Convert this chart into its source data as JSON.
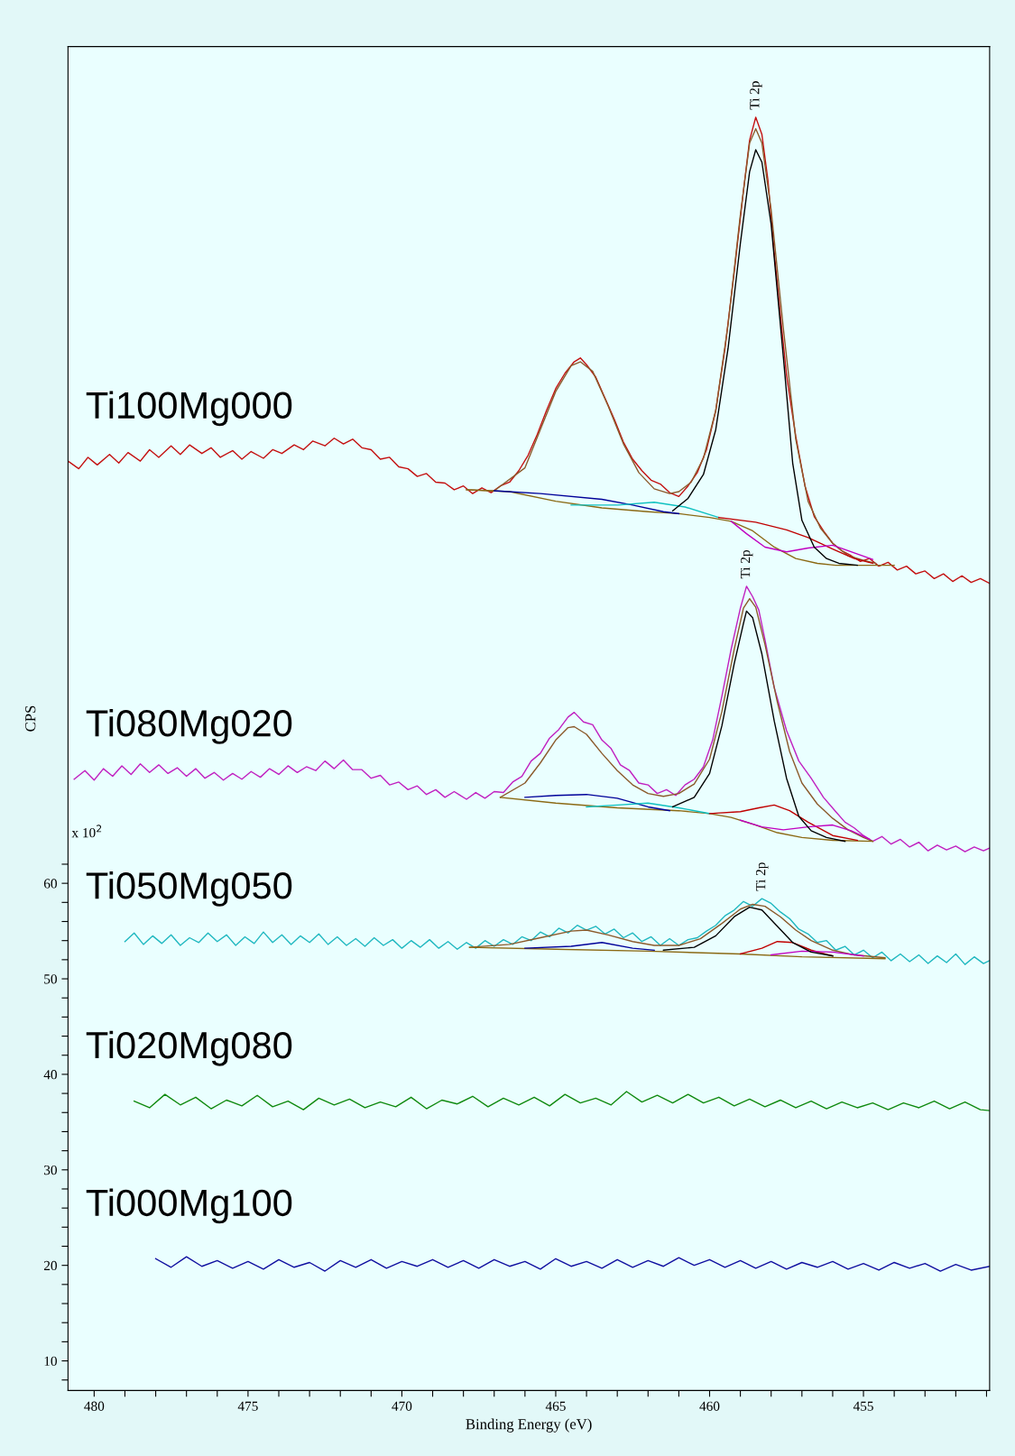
{
  "chart_data": {
    "type": "line",
    "xlabel": "Binding Energy (eV)",
    "ylabel": "CPS",
    "xlim": [
      480.85,
      450.9
    ],
    "ylim": [
      6.9,
      147.6
    ],
    "xticks": [
      480,
      {
        "value": 479,
        "label": null
      },
      {
        "value": 478,
        "label": null
      },
      {
        "value": 477,
        "label": null
      },
      {
        "value": 476,
        "label": null
      },
      475,
      {
        "value": 474,
        "label": null
      },
      {
        "value": 473,
        "label": null
      },
      {
        "value": 472,
        "label": null
      },
      {
        "value": 471,
        "label": null
      },
      470,
      {
        "value": 469,
        "label": null
      },
      {
        "value": 468,
        "label": null
      },
      {
        "value": 467,
        "label": null
      },
      {
        "value": 466,
        "label": null
      },
      465,
      {
        "value": 464,
        "label": null
      },
      {
        "value": 463,
        "label": null
      },
      {
        "value": 462,
        "label": null
      },
      {
        "value": 461,
        "label": null
      },
      460,
      {
        "value": 459,
        "label": null
      },
      {
        "value": 458,
        "label": null
      },
      {
        "value": 457,
        "label": null
      },
      {
        "value": 456,
        "label": null
      },
      455,
      {
        "value": 454,
        "label": null
      },
      {
        "value": 453,
        "label": null
      },
      {
        "value": 452,
        "label": null
      },
      {
        "value": 451,
        "label": null
      }
    ],
    "yticks": [
      {
        "value": 8,
        "label": null
      },
      10,
      {
        "value": 12,
        "label": null
      },
      {
        "value": 14,
        "label": null
      },
      {
        "value": 16,
        "label": null
      },
      {
        "value": 18,
        "label": null
      },
      20,
      {
        "value": 22,
        "label": null
      },
      {
        "value": 24,
        "label": null
      },
      {
        "value": 26,
        "label": null
      },
      {
        "value": 28,
        "label": null
      },
      30,
      {
        "value": 32,
        "label": null
      },
      {
        "value": 34,
        "label": null
      },
      {
        "value": 36,
        "label": null
      },
      {
        "value": 38,
        "label": null
      },
      40,
      {
        "value": 42,
        "label": null
      },
      {
        "value": 44,
        "label": null
      },
      {
        "value": 46,
        "label": null
      },
      {
        "value": 48,
        "label": null
      },
      50,
      {
        "value": 52,
        "label": null
      },
      {
        "value": 54,
        "label": null
      },
      {
        "value": 56,
        "label": null
      },
      {
        "value": 58,
        "label": null
      },
      60,
      {
        "value": 62,
        "label": null
      }
    ],
    "annotations": [
      "x 10$^{2}$",
      {
        "text": "Ti 2p",
        "x": 458.5,
        "y": 140.2
      },
      {
        "text": "Ti 2p",
        "x": 458.8,
        "y": 91.1
      },
      {
        "text": "Ti 2p",
        "x": 458.3,
        "y": 58.4
      }
    ],
    "series": [
      {
        "name": "Ti100Mg000",
        "color": "#c41010",
        "x": [
          480.85,
          480.5,
          480.2,
          479.9,
          479.5,
          479.2,
          478.9,
          478.5,
          478.2,
          477.9,
          477.5,
          477.2,
          476.9,
          476.5,
          476.2,
          475.9,
          475.5,
          475.2,
          474.9,
          474.5,
          474.2,
          473.9,
          473.5,
          473.2,
          472.9,
          472.5,
          472.2,
          471.9,
          471.6,
          471.3,
          471.0,
          470.7,
          470.4,
          470.1,
          469.8,
          469.5,
          469.2,
          468.9,
          468.6,
          468.3,
          468.0,
          467.7,
          467.4,
          467.1,
          466.8,
          466.5,
          466.2,
          465.9,
          465.6,
          465.3,
          465.0,
          464.7,
          464.4,
          464.2,
          464.0,
          463.7,
          463.4,
          463.1,
          462.8,
          462.5,
          462.2,
          461.9,
          461.6,
          461.3,
          461.0,
          460.7,
          460.4,
          460.1,
          459.8,
          459.5,
          459.2,
          458.9,
          458.7,
          458.5,
          458.3,
          458.1,
          457.9,
          457.7,
          457.5,
          457.2,
          456.9,
          456.6,
          456.3,
          456.0,
          455.7,
          455.4,
          455.1,
          454.8,
          454.5,
          454.2,
          453.9,
          453.6,
          453.3,
          453.0,
          452.7,
          452.4,
          452.1,
          451.8,
          451.5,
          451.2,
          450.9
        ],
        "values": [
          104.2,
          103.4,
          104.6,
          103.8,
          104.9,
          104.0,
          105.1,
          104.2,
          105.4,
          104.6,
          105.8,
          104.9,
          105.9,
          105.0,
          105.6,
          104.6,
          105.3,
          104.4,
          105.2,
          104.5,
          105.4,
          105.0,
          105.9,
          105.4,
          106.3,
          105.8,
          106.6,
          106.0,
          106.5,
          105.6,
          105.4,
          104.4,
          104.6,
          103.6,
          103.4,
          102.6,
          102.9,
          102.0,
          101.9,
          101.2,
          101.6,
          100.8,
          101.4,
          100.9,
          101.6,
          102.0,
          103.2,
          104.8,
          107.0,
          109.5,
          111.8,
          113.4,
          114.6,
          115.0,
          114.3,
          113.0,
          110.8,
          108.6,
          106.2,
          104.4,
          103.2,
          102.2,
          101.8,
          100.9,
          100.5,
          101.6,
          103.0,
          105.4,
          109.5,
          116.0,
          124.0,
          132.5,
          137.8,
          140.2,
          138.4,
          133.5,
          126.0,
          119.5,
          113.2,
          106.8,
          101.6,
          98.4,
          96.9,
          95.6,
          94.8,
          94.3,
          93.7,
          94.0,
          93.2,
          93.6,
          92.8,
          93.2,
          92.4,
          92.7,
          91.9,
          92.4,
          91.6,
          92.2,
          91.5,
          91.9,
          91.4
        ]
      },
      {
        "color": "#8b5a2b",
        "x": [
          467.9,
          467.0,
          466.0,
          465.5,
          465.0,
          464.5,
          464.2,
          463.8,
          463.3,
          462.8,
          462.3,
          461.8,
          461.3,
          461.0,
          460.6,
          460.2,
          459.8,
          459.4,
          459.0,
          458.7,
          458.5,
          458.3,
          458.0,
          457.6,
          457.2,
          456.8,
          456.4,
          456.0,
          455.5,
          455.0,
          454.6
        ],
        "values": [
          101.2,
          101.1,
          103.5,
          107.5,
          111.5,
          114.2,
          114.6,
          113.6,
          110.0,
          106.0,
          103.0,
          101.3,
          100.8,
          101.0,
          102.0,
          104.5,
          109.5,
          118.5,
          130.0,
          137.5,
          139.0,
          137.5,
          130.5,
          118.0,
          106.5,
          100.0,
          97.2,
          95.6,
          94.3,
          93.8,
          93.5
        ]
      },
      {
        "color": "#8b6914",
        "x": [
          467.9,
          466.5,
          465.0,
          463.5,
          462.0,
          461.0,
          460.0,
          459.3,
          458.6,
          457.9,
          457.2,
          456.5,
          455.9,
          454.0
        ],
        "values": [
          101.2,
          101.0,
          100.0,
          99.3,
          98.9,
          98.7,
          98.3,
          97.9,
          96.9,
          95.2,
          94.0,
          93.5,
          93.3,
          93.3
        ]
      },
      {
        "color": "#000099",
        "x": [
          467.0,
          465.5,
          463.5,
          462.5,
          461.5,
          461.0
        ],
        "values": [
          101.1,
          100.8,
          100.2,
          99.6,
          98.9,
          98.7
        ]
      },
      {
        "color": "#10c0c0",
        "x": [
          464.5,
          463.0,
          461.8,
          460.8,
          459.7
        ],
        "values": [
          99.6,
          99.6,
          99.9,
          99.4,
          98.3
        ]
      },
      {
        "color": "#c00000",
        "x": [
          459.7,
          458.5,
          457.5,
          456.8,
          456.0,
          455.3,
          454.7
        ],
        "values": [
          98.3,
          97.8,
          97.0,
          96.2,
          95.0,
          94.0,
          93.5
        ]
      },
      {
        "color": "#c000c0",
        "x": [
          459.3,
          458.8,
          458.2,
          457.5,
          456.8,
          456.0,
          455.3,
          454.7
        ],
        "values": [
          97.9,
          96.6,
          95.2,
          94.7,
          95.1,
          95.4,
          94.6,
          93.9
        ]
      },
      {
        "color": "#000000",
        "x": [
          461.2,
          460.7,
          460.2,
          459.8,
          459.4,
          459.0,
          458.7,
          458.5,
          458.3,
          458.0,
          457.6,
          457.3,
          457.0,
          456.6,
          456.2,
          455.8,
          455.2
        ],
        "values": [
          99.0,
          100.3,
          102.8,
          107.5,
          116.0,
          127.0,
          134.5,
          136.8,
          135.5,
          129.0,
          115.0,
          104.0,
          98.0,
          95.2,
          94.0,
          93.5,
          93.3
        ]
      },
      {
        "name": "Ti080Mg020",
        "color": "#c020c0",
        "x": [
          480.65,
          480.3,
          480.0,
          479.7,
          479.4,
          479.1,
          478.8,
          478.5,
          478.2,
          477.9,
          477.6,
          477.3,
          477.0,
          476.7,
          476.4,
          476.1,
          475.8,
          475.5,
          475.2,
          474.9,
          474.6,
          474.3,
          474.0,
          473.7,
          473.4,
          473.1,
          472.8,
          472.5,
          472.2,
          471.9,
          471.6,
          471.3,
          471.0,
          470.7,
          470.4,
          470.1,
          469.8,
          469.5,
          469.2,
          468.9,
          468.6,
          468.3,
          467.9,
          467.6,
          467.3,
          467.0,
          466.7,
          466.4,
          466.1,
          465.8,
          465.5,
          465.2,
          464.9,
          464.6,
          464.4,
          464.1,
          463.8,
          463.5,
          463.2,
          462.9,
          462.6,
          462.3,
          462.0,
          461.7,
          461.4,
          461.1,
          460.8,
          460.5,
          460.2,
          459.9,
          459.6,
          459.3,
          459.0,
          458.8,
          458.6,
          458.4,
          458.2,
          457.9,
          457.5,
          457.1,
          456.7,
          456.3,
          455.9,
          455.6,
          455.3,
          455.0,
          454.7,
          454.4,
          454.1,
          453.8,
          453.5,
          453.2,
          452.9,
          452.6,
          452.3,
          452.0,
          451.7,
          451.4,
          451.1,
          450.9
        ],
        "values": [
          70.9,
          71.8,
          70.8,
          72.0,
          71.2,
          72.3,
          71.4,
          72.5,
          71.6,
          72.4,
          71.5,
          72.1,
          71.2,
          72.0,
          71.0,
          71.6,
          70.8,
          71.5,
          70.9,
          71.7,
          71.1,
          72.0,
          71.4,
          72.3,
          71.6,
          72.2,
          71.8,
          72.8,
          72.0,
          72.9,
          71.9,
          71.9,
          71.0,
          71.3,
          70.3,
          70.6,
          69.8,
          70.2,
          69.3,
          69.8,
          69.0,
          69.6,
          68.8,
          69.5,
          68.9,
          69.6,
          69.5,
          70.6,
          71.2,
          72.8,
          73.6,
          75.2,
          76.1,
          77.4,
          77.9,
          76.9,
          76.6,
          75.0,
          74.1,
          72.4,
          71.8,
          70.5,
          70.3,
          69.4,
          69.8,
          69.2,
          70.3,
          70.9,
          72.2,
          75.0,
          79.6,
          84.5,
          88.8,
          91.1,
          90.0,
          88.6,
          85.5,
          80.5,
          76.0,
          72.8,
          71.0,
          69.0,
          67.5,
          66.4,
          65.8,
          65.0,
          64.4,
          64.9,
          64.1,
          64.6,
          63.8,
          64.3,
          63.4,
          64.0,
          63.5,
          63.9,
          63.3,
          63.8,
          63.4,
          63.7
        ]
      },
      {
        "color": "#8b5a2b",
        "x": [
          466.8,
          466.0,
          465.5,
          465.0,
          464.6,
          464.4,
          464.0,
          463.5,
          463.0,
          462.5,
          462.0,
          461.5,
          461.0,
          460.5,
          460.0,
          459.6,
          459.2,
          458.9,
          458.7,
          458.5,
          458.2,
          457.8,
          457.4,
          457.0,
          456.5,
          456.0,
          455.5,
          455.0,
          454.7
        ],
        "values": [
          69.0,
          70.5,
          72.6,
          75.0,
          76.3,
          76.4,
          75.6,
          73.6,
          71.8,
          70.3,
          69.4,
          69.1,
          69.4,
          70.4,
          73.0,
          78.0,
          84.5,
          88.8,
          89.8,
          88.9,
          85.0,
          79.0,
          73.8,
          70.5,
          68.3,
          66.8,
          65.6,
          64.8,
          64.4
        ]
      },
      {
        "color": "#8b6914",
        "x": [
          466.8,
          465.0,
          463.0,
          461.0,
          460.0,
          459.3,
          458.5,
          457.8,
          457.0,
          456.0,
          454.7
        ],
        "values": [
          69.0,
          68.4,
          67.9,
          67.6,
          67.3,
          66.9,
          66.1,
          65.3,
          64.8,
          64.5,
          64.4
        ]
      },
      {
        "color": "#000099",
        "x": [
          466.0,
          465.0,
          464.0,
          463.0,
          462.0,
          461.3
        ],
        "values": [
          69.0,
          69.2,
          69.3,
          68.9,
          68.0,
          67.6
        ]
      },
      {
        "color": "#10c0c0",
        "x": [
          464.0,
          463.0,
          462.0,
          461.0,
          460.0
        ],
        "values": [
          68.0,
          68.2,
          68.4,
          67.9,
          67.3
        ]
      },
      {
        "color": "#c00000",
        "x": [
          460.0,
          459.0,
          458.4,
          457.9,
          457.4,
          456.8,
          456.0,
          455.2
        ],
        "values": [
          67.3,
          67.5,
          67.9,
          68.2,
          67.6,
          66.4,
          65.0,
          64.5
        ]
      },
      {
        "color": "#c000c0",
        "x": [
          459.0,
          458.3,
          457.6,
          456.8,
          456.0,
          455.4,
          454.8
        ],
        "values": [
          66.6,
          65.9,
          65.6,
          65.9,
          66.1,
          65.5,
          64.6
        ]
      },
      {
        "color": "#000000",
        "x": [
          461.2,
          460.5,
          460.0,
          459.6,
          459.2,
          458.9,
          458.8,
          458.6,
          458.3,
          457.9,
          457.5,
          457.1,
          456.7,
          456.2,
          455.6
        ],
        "values": [
          68.0,
          69.0,
          71.5,
          76.5,
          83.0,
          87.2,
          88.5,
          87.8,
          84.0,
          77.0,
          71.0,
          67.0,
          65.5,
          64.8,
          64.4
        ]
      },
      {
        "name": "Ti050Mg050",
        "color": "#20b8c0",
        "x": [
          479.0,
          478.7,
          478.4,
          478.1,
          477.8,
          477.5,
          477.2,
          476.9,
          476.6,
          476.3,
          476.0,
          475.7,
          475.4,
          475.1,
          474.8,
          474.5,
          474.2,
          473.9,
          473.6,
          473.3,
          473.0,
          472.7,
          472.4,
          472.1,
          471.8,
          471.5,
          471.2,
          470.9,
          470.6,
          470.3,
          470.0,
          469.7,
          469.4,
          469.1,
          468.8,
          468.5,
          468.2,
          467.9,
          467.6,
          467.3,
          467.0,
          466.7,
          466.4,
          466.1,
          465.8,
          465.5,
          465.2,
          464.9,
          464.6,
          464.3,
          464.0,
          463.7,
          463.4,
          463.1,
          462.8,
          462.5,
          462.2,
          461.9,
          461.6,
          461.3,
          461.0,
          460.7,
          460.4,
          460.1,
          459.8,
          459.5,
          459.2,
          458.9,
          458.6,
          458.3,
          458.0,
          457.7,
          457.4,
          457.1,
          456.8,
          456.5,
          456.2,
          455.9,
          455.6,
          455.3,
          455.0,
          454.7,
          454.4,
          454.1,
          453.8,
          453.5,
          453.2,
          452.9,
          452.6,
          452.3,
          452.0,
          451.7,
          451.4,
          451.1,
          450.9
        ],
        "values": [
          53.9,
          54.8,
          53.6,
          54.5,
          53.7,
          54.6,
          53.5,
          54.3,
          53.8,
          54.8,
          53.9,
          54.6,
          53.5,
          54.4,
          53.7,
          54.9,
          53.8,
          54.6,
          53.6,
          54.5,
          53.8,
          54.7,
          53.6,
          54.4,
          53.5,
          54.2,
          53.4,
          54.3,
          53.5,
          54.1,
          53.2,
          54.0,
          53.3,
          54.1,
          53.2,
          53.9,
          53.1,
          53.8,
          53.2,
          54.0,
          53.4,
          54.1,
          53.6,
          54.4,
          54.0,
          54.9,
          54.4,
          55.3,
          54.8,
          55.6,
          55.1,
          55.5,
          54.7,
          55.2,
          54.3,
          54.8,
          53.9,
          54.4,
          53.5,
          54.2,
          53.5,
          54.1,
          54.3,
          55.0,
          55.6,
          56.6,
          57.2,
          58.1,
          57.6,
          58.4,
          57.9,
          57.0,
          56.3,
          55.2,
          54.7,
          53.8,
          54.0,
          53.0,
          53.4,
          52.5,
          53.0,
          52.2,
          52.8,
          51.9,
          52.6,
          51.8,
          52.5,
          51.6,
          52.4,
          51.7,
          52.6,
          51.5,
          52.3,
          51.6,
          51.9
        ]
      },
      {
        "color": "#8b5a2b",
        "x": [
          467.8,
          466.5,
          465.5,
          464.5,
          464.0,
          463.3,
          462.5,
          461.8,
          461.0,
          460.3,
          459.6,
          459.0,
          458.6,
          458.2,
          457.7,
          457.2,
          456.7,
          456.0,
          455.3,
          454.3
        ],
        "values": [
          53.3,
          53.6,
          54.3,
          55.0,
          55.1,
          54.6,
          53.9,
          53.5,
          53.5,
          54.2,
          55.8,
          57.3,
          57.8,
          57.6,
          56.5,
          55.1,
          54.0,
          53.0,
          52.5,
          52.2
        ]
      },
      {
        "color": "#8b6914",
        "x": [
          467.8,
          465.0,
          462.0,
          459.0,
          457.0,
          454.3
        ],
        "values": [
          53.3,
          53.1,
          52.9,
          52.6,
          52.3,
          52.1
        ]
      },
      {
        "color": "#000099",
        "x": [
          466.0,
          464.5,
          463.5,
          462.5,
          461.8
        ],
        "values": [
          53.2,
          53.4,
          53.8,
          53.2,
          53.0
        ]
      },
      {
        "color": "#c00000",
        "x": [
          459.0,
          458.3,
          457.8,
          457.3,
          456.7,
          456.0
        ],
        "values": [
          52.6,
          53.2,
          53.9,
          53.8,
          53.0,
          52.4
        ]
      },
      {
        "color": "#c000c0",
        "x": [
          458.0,
          457.0,
          456.0,
          455.0
        ],
        "values": [
          52.5,
          52.9,
          52.8,
          52.4
        ]
      },
      {
        "color": "#000000",
        "x": [
          461.5,
          460.5,
          459.8,
          459.2,
          458.7,
          458.3,
          457.8,
          457.3,
          456.7,
          456.0
        ],
        "values": [
          53.0,
          53.3,
          54.5,
          56.5,
          57.5,
          57.2,
          55.5,
          53.8,
          52.8,
          52.4
        ]
      },
      {
        "name": "Ti020Mg080",
        "color": "#108a10",
        "x": [
          478.7,
          478.2,
          477.7,
          477.2,
          476.7,
          476.2,
          475.7,
          475.2,
          474.7,
          474.2,
          473.7,
          473.2,
          472.7,
          472.2,
          471.7,
          471.2,
          470.7,
          470.2,
          469.7,
          469.2,
          468.7,
          468.2,
          467.7,
          467.2,
          466.7,
          466.2,
          465.7,
          465.2,
          464.7,
          464.2,
          463.7,
          463.2,
          462.7,
          462.2,
          461.7,
          461.2,
          460.7,
          460.2,
          459.7,
          459.2,
          458.7,
          458.2,
          457.7,
          457.2,
          456.7,
          456.2,
          455.7,
          455.2,
          454.7,
          454.2,
          453.7,
          453.2,
          452.7,
          452.2,
          451.7,
          451.2,
          450.9
        ],
        "values": [
          37.2,
          36.5,
          37.9,
          36.8,
          37.6,
          36.4,
          37.3,
          36.7,
          37.8,
          36.6,
          37.2,
          36.3,
          37.5,
          36.8,
          37.4,
          36.5,
          37.1,
          36.6,
          37.6,
          36.4,
          37.3,
          36.9,
          37.7,
          36.6,
          37.5,
          36.8,
          37.6,
          36.7,
          37.9,
          37.0,
          37.5,
          36.8,
          38.2,
          37.1,
          37.8,
          37.0,
          37.9,
          37.0,
          37.6,
          36.7,
          37.4,
          36.6,
          37.3,
          36.5,
          37.2,
          36.4,
          37.1,
          36.5,
          37.0,
          36.3,
          37.0,
          36.5,
          37.2,
          36.4,
          37.1,
          36.3,
          36.2
        ]
      },
      {
        "name": "Ti000Mg100",
        "color": "#1010a0",
        "x": [
          478.0,
          477.5,
          477.0,
          476.5,
          476.0,
          475.5,
          475.0,
          474.5,
          474.0,
          473.5,
          473.0,
          472.5,
          472.0,
          471.5,
          471.0,
          470.5,
          470.0,
          469.5,
          469.0,
          468.5,
          468.0,
          467.5,
          467.0,
          466.5,
          466.0,
          465.5,
          465.0,
          464.5,
          464.0,
          463.5,
          463.0,
          462.5,
          462.0,
          461.5,
          461.0,
          460.5,
          460.0,
          459.5,
          459.0,
          458.5,
          458.0,
          457.5,
          457.0,
          456.5,
          456.0,
          455.5,
          455.0,
          454.5,
          454.0,
          453.5,
          453.0,
          452.5,
          452.0,
          451.5,
          450.9
        ],
        "values": [
          20.7,
          19.8,
          20.9,
          19.9,
          20.5,
          19.7,
          20.4,
          19.6,
          20.6,
          19.8,
          20.3,
          19.4,
          20.5,
          19.8,
          20.6,
          19.7,
          20.4,
          19.9,
          20.6,
          19.8,
          20.5,
          19.7,
          20.6,
          19.9,
          20.4,
          19.6,
          20.7,
          19.9,
          20.4,
          19.7,
          20.6,
          19.8,
          20.5,
          19.9,
          20.8,
          20.0,
          20.6,
          19.8,
          20.5,
          19.7,
          20.4,
          19.6,
          20.3,
          19.8,
          20.4,
          19.6,
          20.2,
          19.5,
          20.3,
          19.7,
          20.2,
          19.4,
          20.1,
          19.5,
          19.9
        ]
      }
    ]
  }
}
